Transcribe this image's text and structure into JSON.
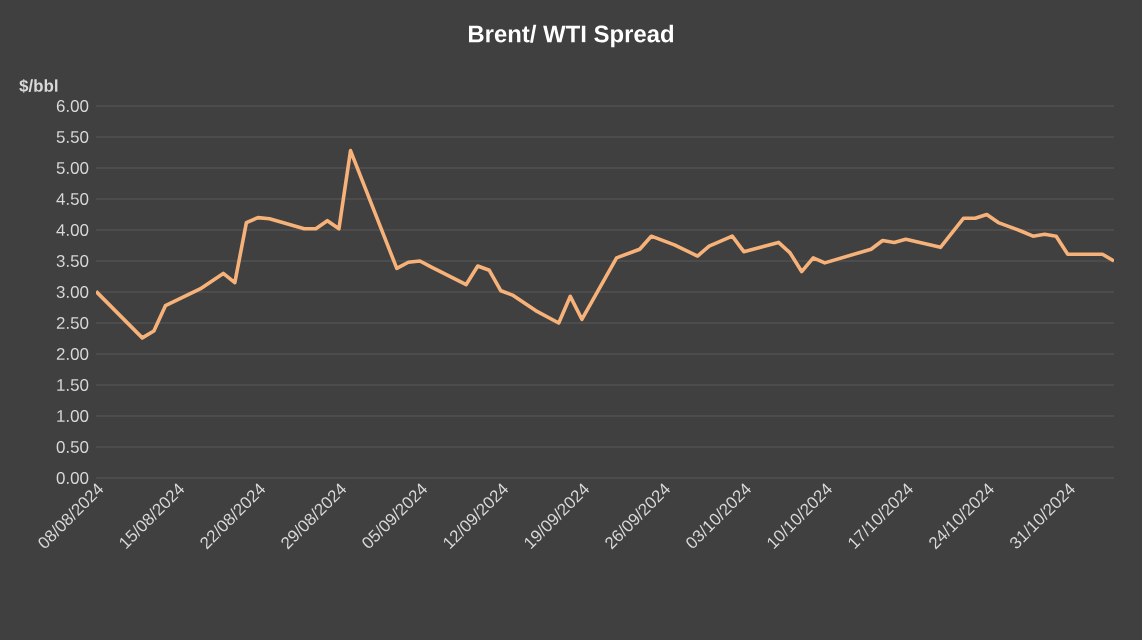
{
  "chart_data": {
    "type": "line",
    "title": "Brent/ WTI Spread",
    "ylabel": "$/bbl",
    "color": "#f7b27a",
    "grid": "y",
    "x": [
      "2024-08-08",
      "2024-08-12",
      "2024-08-13",
      "2024-08-14",
      "2024-08-17",
      "2024-08-19",
      "2024-08-20",
      "2024-08-21",
      "2024-08-22",
      "2024-08-23",
      "2024-08-26",
      "2024-08-27",
      "2024-08-28",
      "2024-08-29",
      "2024-08-30",
      "2024-09-03",
      "2024-09-04",
      "2024-09-05",
      "2024-09-06",
      "2024-09-09",
      "2024-09-10",
      "2024-09-11",
      "2024-09-12",
      "2024-09-13",
      "2024-09-15",
      "2024-09-17",
      "2024-09-18",
      "2024-09-19",
      "2024-09-22",
      "2024-09-24",
      "2024-09-25",
      "2024-09-27",
      "2024-09-29",
      "2024-09-30",
      "2024-10-02",
      "2024-10-03",
      "2024-10-06",
      "2024-10-07",
      "2024-10-08",
      "2024-10-09",
      "2024-10-10",
      "2024-10-14",
      "2024-10-15",
      "2024-10-16",
      "2024-10-17",
      "2024-10-20",
      "2024-10-22",
      "2024-10-23",
      "2024-10-24",
      "2024-10-25",
      "2024-10-27",
      "2024-10-28",
      "2024-10-29",
      "2024-10-30",
      "2024-10-31",
      "2024-11-03",
      "2024-11-04"
    ],
    "values": [
      3.01,
      2.26,
      2.37,
      2.78,
      3.05,
      3.3,
      3.15,
      4.12,
      4.2,
      4.18,
      4.02,
      4.02,
      4.15,
      4.02,
      5.28,
      3.38,
      3.48,
      3.5,
      3.4,
      3.12,
      3.42,
      3.35,
      3.02,
      2.95,
      2.7,
      2.5,
      2.93,
      2.56,
      3.55,
      3.69,
      3.9,
      3.76,
      3.58,
      3.74,
      3.9,
      3.65,
      3.8,
      3.63,
      3.33,
      3.55,
      3.47,
      3.69,
      3.83,
      3.8,
      3.85,
      3.72,
      4.19,
      4.19,
      4.25,
      4.12,
      3.98,
      3.9,
      3.93,
      3.9,
      3.61,
      3.61,
      3.5
    ],
    "xlim": [
      "2024-08-08",
      "2024-11-04"
    ],
    "xticks": [
      {
        "value": "2024-08-08",
        "label": "08/08/2024"
      },
      {
        "value": "2024-08-15",
        "label": "15/08/2024"
      },
      {
        "value": "2024-08-22",
        "label": "22/08/2024"
      },
      {
        "value": "2024-08-29",
        "label": "29/08/2024"
      },
      {
        "value": "2024-09-05",
        "label": "05/09/2024"
      },
      {
        "value": "2024-09-12",
        "label": "12/09/2024"
      },
      {
        "value": "2024-09-19",
        "label": "19/09/2024"
      },
      {
        "value": "2024-09-26",
        "label": "26/09/2024"
      },
      {
        "value": "2024-10-03",
        "label": "03/10/2024"
      },
      {
        "value": "2024-10-10",
        "label": "10/10/2024"
      },
      {
        "value": "2024-10-17",
        "label": "17/10/2024"
      },
      {
        "value": "2024-10-24",
        "label": "24/10/2024"
      },
      {
        "value": "2024-10-31",
        "label": "31/10/2024"
      }
    ],
    "ylim": [
      0,
      6
    ],
    "yticks": [
      {
        "value": 0,
        "label": "0.00"
      },
      {
        "value": 0.5,
        "label": "0.50"
      },
      {
        "value": 1,
        "label": "1.00"
      },
      {
        "value": 1.5,
        "label": "1.50"
      },
      {
        "value": 2,
        "label": "2.00"
      },
      {
        "value": 2.5,
        "label": "2.50"
      },
      {
        "value": 3,
        "label": "3.00"
      },
      {
        "value": 3.5,
        "label": "3.50"
      },
      {
        "value": 4,
        "label": "4.00"
      },
      {
        "value": 4.5,
        "label": "4.50"
      },
      {
        "value": 5,
        "label": "5.00"
      },
      {
        "value": 5.5,
        "label": "5.50"
      },
      {
        "value": 6,
        "label": "6.00"
      }
    ]
  }
}
